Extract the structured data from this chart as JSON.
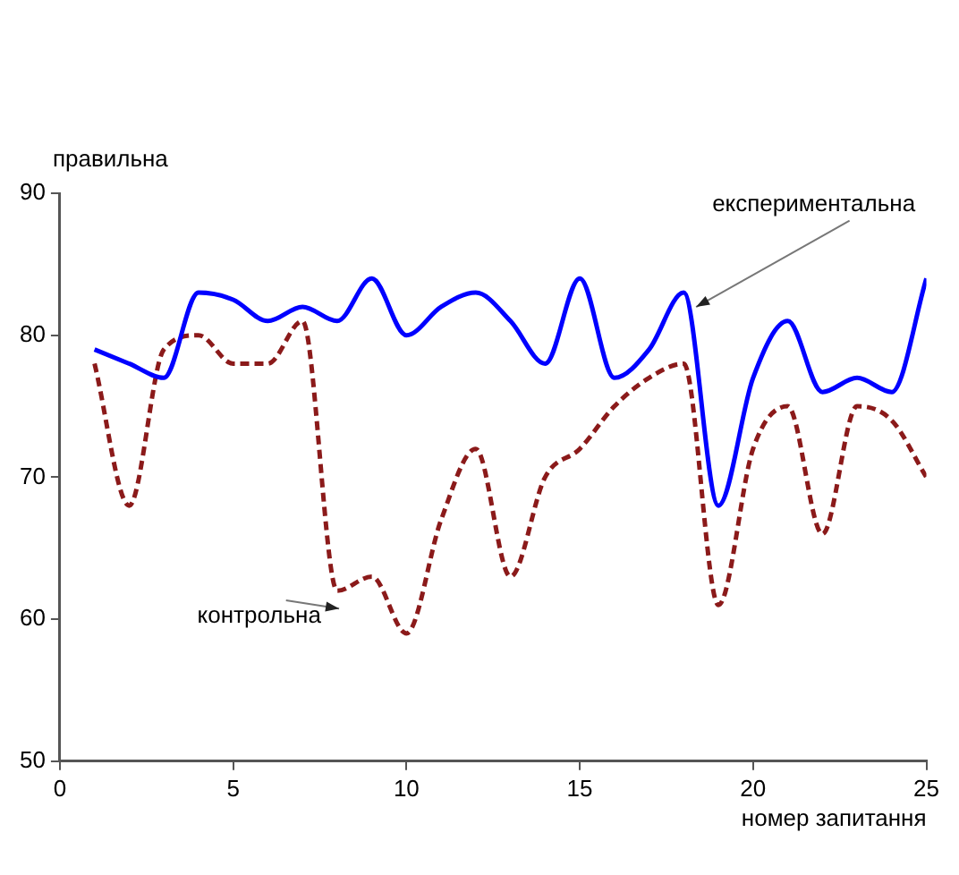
{
  "chart_data": {
    "type": "line",
    "xlabel": "номер запитання",
    "ylabel": "правильна",
    "x": [
      1,
      2,
      3,
      4,
      5,
      6,
      7,
      8,
      9,
      10,
      11,
      12,
      13,
      14,
      15,
      16,
      17,
      18,
      19,
      20,
      21,
      22,
      23,
      24,
      25
    ],
    "series": [
      {
        "name": "експериментальна",
        "color": "#0000ff",
        "line_style": "solid",
        "values": [
          79,
          78,
          77,
          83,
          82.5,
          81,
          82,
          81,
          84,
          80,
          82,
          83,
          81,
          78,
          84,
          77,
          79,
          83,
          68,
          77,
          81,
          76,
          77,
          76,
          84
        ]
      },
      {
        "name": "контрольна",
        "color": "#8b1a1a",
        "line_style": "dashed",
        "values": [
          78,
          68,
          79,
          80,
          78,
          78,
          81,
          62,
          63,
          59,
          67,
          72,
          63,
          70,
          72,
          75,
          77,
          78,
          61,
          72,
          75,
          66,
          75,
          74,
          70
        ]
      }
    ],
    "xlim": [
      0,
      25
    ],
    "xticks": [
      0,
      5,
      10,
      15,
      20,
      25
    ],
    "ylim": [
      50,
      90
    ],
    "yticks": [
      50,
      60,
      70,
      80,
      90
    ],
    "grid": false,
    "legend": false,
    "marker": "none"
  }
}
